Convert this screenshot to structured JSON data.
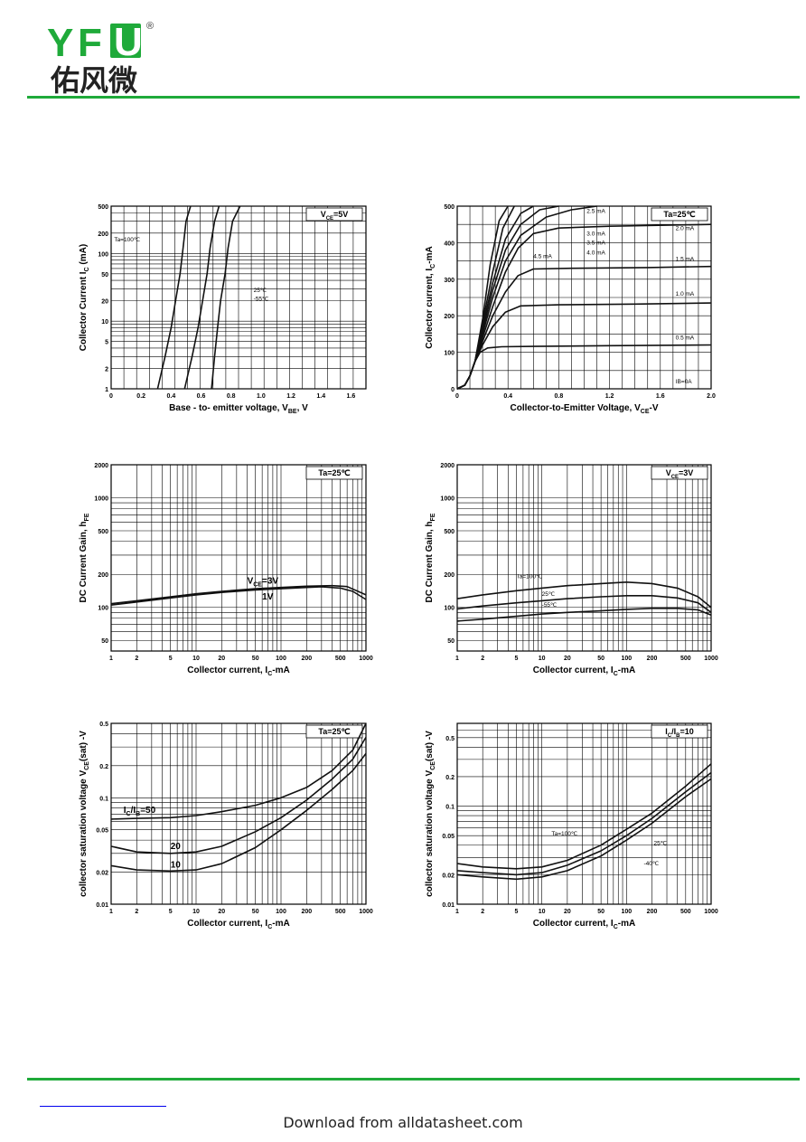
{
  "header": {
    "logo": {
      "letters": [
        "Y",
        "F",
        "U"
      ],
      "registered": "®",
      "cn": "佑风微",
      "brand_color": "#1faa3a"
    }
  },
  "footer": {
    "text": "Download from alldatasheet.com",
    "link_color": "#0000ee"
  },
  "chart_data": [
    {
      "type": "line",
      "yscale": "log",
      "xlabel": "Base - to- emitter voltage, Vₓₑ, V",
      "xlabel_main": "Base - to- emitter voltage, V",
      "xlabel_sub": "BE",
      "xlabel_tail": ", V",
      "ylabel_main": "Collector  Current  I",
      "ylabel_sub": "C",
      "ylabel_tail": " (mA)",
      "xlim": [
        0,
        1.7
      ],
      "ylim": [
        1,
        500
      ],
      "xticks": [
        "0",
        "0.2",
        "0.4",
        "0.6",
        "0.8",
        "1.0",
        "1.2",
        "1.4",
        "1.6"
      ],
      "xtick_vals": [
        0,
        0.2,
        0.4,
        0.6,
        0.8,
        1.0,
        1.2,
        1.4,
        1.6
      ],
      "yticks": [
        "1",
        "2",
        "5",
        "10",
        "20",
        "50",
        "100",
        "200",
        "500"
      ],
      "ytick_vals": [
        1,
        2,
        5,
        10,
        20,
        50,
        100,
        200,
        500
      ],
      "box_main": "V",
      "box_sub": "CE",
      "box_tail": "=5V",
      "annotations": [
        {
          "text": "Ta=100℃",
          "x": 0.02,
          "y": 150
        },
        {
          "text": "25℃",
          "x": 0.95,
          "y": 27
        },
        {
          "text": "-55℃",
          "x": 0.95,
          "y": 20
        }
      ],
      "series": [
        {
          "name": "Ta=100℃",
          "x": [
            0.31,
            0.36,
            0.4,
            0.43,
            0.46,
            0.48,
            0.5,
            0.53
          ],
          "y": [
            1,
            3,
            8,
            20,
            50,
            120,
            300,
            500
          ]
        },
        {
          "name": "25℃",
          "x": [
            0.49,
            0.54,
            0.58,
            0.61,
            0.64,
            0.66,
            0.69,
            0.72
          ],
          "y": [
            1,
            3,
            8,
            20,
            50,
            120,
            300,
            500
          ]
        },
        {
          "name": "-55℃",
          "x": [
            0.67,
            0.69,
            0.71,
            0.73,
            0.76,
            0.78,
            0.81,
            0.86
          ],
          "y": [
            1,
            3,
            8,
            20,
            50,
            120,
            300,
            500
          ]
        }
      ]
    },
    {
      "type": "line",
      "xlabel_main": "Collector-to-Emitter Voltage, V",
      "xlabel_sub": "CE",
      "xlabel_tail": "-V",
      "ylabel_main": "Collector current, I",
      "ylabel_sub": "C",
      "ylabel_tail": "-mA",
      "xlim": [
        0,
        2.0
      ],
      "ylim": [
        0,
        500
      ],
      "xticks": [
        "0",
        "0.4",
        "0.8",
        "1.2",
        "1.6",
        "2.0"
      ],
      "xtick_vals": [
        0,
        0.4,
        0.8,
        1.2,
        1.6,
        2.0
      ],
      "yticks": [
        "0",
        "100",
        "200",
        "300",
        "400",
        "500"
      ],
      "ytick_vals": [
        0,
        100,
        200,
        300,
        400,
        500
      ],
      "box_text": "Ta=25℃",
      "annotations": [
        {
          "text": "2.5 mA",
          "x": 1.02,
          "y": 482
        },
        {
          "text": "2.0 mA",
          "x": 1.72,
          "y": 435
        },
        {
          "text": "3.0 mA",
          "x": 1.02,
          "y": 420
        },
        {
          "text": "3.5 mA",
          "x": 1.02,
          "y": 395
        },
        {
          "text": "4.0 mA",
          "x": 1.02,
          "y": 368
        },
        {
          "text": "4.5 mA",
          "x": 0.6,
          "y": 358
        },
        {
          "text": "1.5 mA",
          "x": 1.72,
          "y": 350
        },
        {
          "text": "1.0 mA",
          "x": 1.72,
          "y": 255
        },
        {
          "text": "0.5 mA",
          "x": 1.72,
          "y": 135
        },
        {
          "text": "IB=0A",
          "x": 1.72,
          "y": 15
        }
      ],
      "series": [
        {
          "name": "0.5 mA",
          "x": [
            0,
            0.06,
            0.1,
            0.14,
            0.18,
            0.24,
            0.35,
            0.6,
            1.2,
            2.0
          ],
          "y": [
            0,
            10,
            35,
            75,
            100,
            112,
            115,
            116,
            118,
            120
          ]
        },
        {
          "name": "1.0 mA",
          "x": [
            0,
            0.06,
            0.1,
            0.14,
            0.2,
            0.28,
            0.38,
            0.5,
            0.8,
            1.4,
            2.0
          ],
          "y": [
            0,
            10,
            35,
            75,
            120,
            170,
            210,
            227,
            230,
            232,
            235
          ]
        },
        {
          "name": "1.5 mA",
          "x": [
            0,
            0.06,
            0.1,
            0.14,
            0.2,
            0.28,
            0.38,
            0.48,
            0.6,
            0.9,
            1.5,
            2.0
          ],
          "y": [
            0,
            10,
            35,
            75,
            130,
            200,
            265,
            310,
            328,
            330,
            332,
            335
          ]
        },
        {
          "name": "2.0 mA",
          "x": [
            0,
            0.06,
            0.1,
            0.14,
            0.2,
            0.28,
            0.38,
            0.48,
            0.6,
            0.8,
            1.2,
            2.0
          ],
          "y": [
            0,
            10,
            35,
            75,
            140,
            225,
            320,
            385,
            425,
            440,
            445,
            450
          ]
        },
        {
          "name": "2.5 mA",
          "x": [
            0,
            0.06,
            0.1,
            0.14,
            0.2,
            0.28,
            0.38,
            0.5,
            0.7,
            0.9,
            1.1
          ],
          "y": [
            0,
            10,
            35,
            75,
            150,
            250,
            350,
            420,
            470,
            490,
            500
          ]
        },
        {
          "name": "3.0 mA",
          "x": [
            0,
            0.06,
            0.1,
            0.14,
            0.2,
            0.28,
            0.38,
            0.5,
            0.65,
            0.8
          ],
          "y": [
            0,
            10,
            35,
            75,
            160,
            270,
            380,
            450,
            490,
            500
          ]
        },
        {
          "name": "3.5 mA",
          "x": [
            0,
            0.06,
            0.1,
            0.14,
            0.2,
            0.28,
            0.38,
            0.5,
            0.6
          ],
          "y": [
            0,
            10,
            35,
            75,
            170,
            290,
            410,
            480,
            500
          ]
        },
        {
          "name": "4.0 mA",
          "x": [
            0,
            0.06,
            0.1,
            0.14,
            0.2,
            0.28,
            0.36,
            0.45
          ],
          "y": [
            0,
            10,
            35,
            75,
            180,
            320,
            440,
            500
          ]
        },
        {
          "name": "4.5 mA",
          "x": [
            0,
            0.06,
            0.1,
            0.14,
            0.2,
            0.26,
            0.33,
            0.4
          ],
          "y": [
            0,
            10,
            35,
            75,
            190,
            340,
            460,
            500
          ]
        }
      ]
    },
    {
      "type": "line",
      "xscale": "log",
      "yscale": "log",
      "xlabel_main": "Collector current, I",
      "xlabel_sub": "C",
      "xlabel_tail": "-mA",
      "ylabel_main": "DC Current Gain, h",
      "ylabel_sub": "FE",
      "ylabel_tail": "",
      "xlim": [
        1,
        1000
      ],
      "ylim": [
        40,
        2000
      ],
      "xticks": [
        "1",
        "2",
        "5",
        "10",
        "20",
        "50",
        "100",
        "200",
        "500",
        "1000"
      ],
      "xtick_vals": [
        1,
        2,
        5,
        10,
        20,
        50,
        100,
        200,
        500,
        1000
      ],
      "yticks": [
        "50",
        "100",
        "200",
        "500",
        "1000",
        "2000"
      ],
      "ytick_vals": [
        50,
        100,
        200,
        500,
        1000,
        2000
      ],
      "box_text": "Ta=25℃",
      "annotations": [
        {
          "text_main": "V",
          "text_sub": "CE",
          "text_tail": "=3V",
          "x": 40,
          "y": 165
        },
        {
          "text_main": "1V",
          "text_sub": "",
          "text_tail": "",
          "x": 60,
          "y": 118
        }
      ],
      "series": [
        {
          "name": "Vₓₑ=3V",
          "x": [
            1,
            2,
            5,
            10,
            20,
            50,
            100,
            200,
            400,
            600,
            1000
          ],
          "y": [
            108,
            115,
            125,
            133,
            140,
            148,
            152,
            156,
            158,
            155,
            130
          ]
        },
        {
          "name": "1V",
          "x": [
            1,
            2,
            5,
            10,
            20,
            50,
            100,
            200,
            300,
            500,
            700,
            1000
          ],
          "y": [
            105,
            112,
            122,
            130,
            137,
            144,
            148,
            152,
            154,
            150,
            140,
            118
          ]
        }
      ]
    },
    {
      "type": "line",
      "xscale": "log",
      "yscale": "log",
      "xlabel_main": "Collector current, I",
      "xlabel_sub": "C",
      "xlabel_tail": "-mA",
      "ylabel_main": "DC Current Gain, h",
      "ylabel_sub": "FE",
      "ylabel_tail": "",
      "xlim": [
        1,
        1000
      ],
      "ylim": [
        40,
        2000
      ],
      "xticks": [
        "1",
        "2",
        "5",
        "10",
        "20",
        "50",
        "100",
        "200",
        "500",
        "1000"
      ],
      "xtick_vals": [
        1,
        2,
        5,
        10,
        20,
        50,
        100,
        200,
        500,
        1000
      ],
      "yticks": [
        "50",
        "100",
        "200",
        "500",
        "1000",
        "2000"
      ],
      "ytick_vals": [
        50,
        100,
        200,
        500,
        1000,
        2000
      ],
      "box_main": "V",
      "box_sub": "CE",
      "box_tail": "=3V",
      "annotations": [
        {
          "text": "Ta=100℃",
          "x": 5,
          "y": 185
        },
        {
          "text": "25℃",
          "x": 10,
          "y": 128
        },
        {
          "text": "-55℃",
          "x": 10,
          "y": 101
        }
      ],
      "series": [
        {
          "name": "Ta=100℃",
          "x": [
            1,
            2,
            5,
            10,
            20,
            50,
            100,
            200,
            400,
            700,
            1000
          ],
          "y": [
            120,
            130,
            142,
            150,
            158,
            165,
            170,
            165,
            150,
            125,
            100
          ]
        },
        {
          "name": "25℃",
          "x": [
            1,
            2,
            5,
            10,
            20,
            50,
            100,
            200,
            400,
            700,
            1000
          ],
          "y": [
            97,
            103,
            110,
            115,
            120,
            125,
            128,
            128,
            122,
            110,
            90
          ]
        },
        {
          "name": "-55℃",
          "x": [
            1,
            2,
            5,
            10,
            20,
            50,
            100,
            200,
            400,
            700,
            1000
          ],
          "y": [
            75,
            78,
            83,
            87,
            90,
            93,
            96,
            98,
            98,
            95,
            85
          ]
        }
      ]
    },
    {
      "type": "line",
      "xscale": "log",
      "yscale": "log",
      "xlabel_main": "Collector current, I",
      "xlabel_sub": "C",
      "xlabel_tail": "-mA",
      "ylabel_main": "collector saturation voltage V",
      "ylabel_sub": "CE",
      "ylabel_tail": "(sat) -V",
      "xlim": [
        1,
        1000
      ],
      "ylim": [
        0.01,
        0.5
      ],
      "xticks": [
        "1",
        "2",
        "5",
        "10",
        "20",
        "50",
        "100",
        "200",
        "500",
        "1000"
      ],
      "xtick_vals": [
        1,
        2,
        5,
        10,
        20,
        50,
        100,
        200,
        500,
        1000
      ],
      "yticks": [
        "0.01",
        "0.02",
        "0.05",
        "0.1",
        "0.2",
        "0.5"
      ],
      "ytick_vals": [
        0.01,
        0.02,
        0.05,
        0.1,
        0.2,
        0.5
      ],
      "box_text": "Ta=25℃",
      "annotations": [
        {
          "text_main": "I",
          "text_sub": "C",
          "text_tail": "/I",
          "text_sub2": "B",
          "text_tail2": "=50",
          "x": 1.4,
          "y": 0.072
        },
        {
          "text_main": "20",
          "x": 5,
          "y": 0.033
        },
        {
          "text_main": "10",
          "x": 5,
          "y": 0.022
        }
      ],
      "series": [
        {
          "name": "50",
          "x": [
            1,
            2,
            5,
            10,
            20,
            50,
            100,
            200,
            400,
            700,
            1000
          ],
          "y": [
            0.063,
            0.064,
            0.065,
            0.068,
            0.074,
            0.085,
            0.1,
            0.125,
            0.18,
            0.28,
            0.5
          ]
        },
        {
          "name": "20",
          "x": [
            1,
            2,
            5,
            10,
            20,
            50,
            100,
            200,
            400,
            700,
            1000
          ],
          "y": [
            0.035,
            0.031,
            0.03,
            0.031,
            0.035,
            0.048,
            0.065,
            0.095,
            0.15,
            0.23,
            0.37
          ]
        },
        {
          "name": "10",
          "x": [
            1,
            2,
            5,
            10,
            20,
            50,
            100,
            200,
            400,
            700,
            1000
          ],
          "y": [
            0.023,
            0.021,
            0.0205,
            0.021,
            0.024,
            0.034,
            0.05,
            0.076,
            0.12,
            0.18,
            0.26
          ]
        }
      ]
    },
    {
      "type": "line",
      "xscale": "log",
      "yscale": "log",
      "xlabel_main": "Collector current, I",
      "xlabel_sub": "C",
      "xlabel_tail": "-mA",
      "ylabel_main": "collector saturation voltage V",
      "ylabel_sub": "CE",
      "ylabel_tail": "(sat) -V",
      "xlim": [
        1,
        1000
      ],
      "ylim": [
        0.01,
        0.7
      ],
      "xticks": [
        "1",
        "2",
        "5",
        "10",
        "20",
        "50",
        "100",
        "200",
        "500",
        "1000"
      ],
      "xtick_vals": [
        1,
        2,
        5,
        10,
        20,
        50,
        100,
        200,
        500,
        1000
      ],
      "yticks": [
        "0.01",
        "0.02",
        "0.05",
        "0.1",
        "0.2",
        "0.5"
      ],
      "ytick_vals": [
        0.01,
        0.02,
        0.05,
        0.1,
        0.2,
        0.5
      ],
      "box_main": "I",
      "box_sub": "C",
      "box_tail": "/I",
      "box_sub2": "B",
      "box_tail2": "=10",
      "annotations": [
        {
          "text": "Ta=100℃",
          "x": 13,
          "y": 0.05
        },
        {
          "text": "25℃",
          "x": 210,
          "y": 0.04
        },
        {
          "text": "-40℃",
          "x": 160,
          "y": 0.025
        }
      ],
      "series": [
        {
          "name": "Ta=100℃",
          "x": [
            1,
            2,
            5,
            10,
            20,
            50,
            100,
            200,
            500,
            1000
          ],
          "y": [
            0.026,
            0.024,
            0.023,
            0.024,
            0.028,
            0.04,
            0.058,
            0.085,
            0.16,
            0.27
          ]
        },
        {
          "name": "25℃",
          "x": [
            1,
            2,
            5,
            10,
            20,
            50,
            100,
            200,
            500,
            1000
          ],
          "y": [
            0.022,
            0.021,
            0.02,
            0.021,
            0.025,
            0.035,
            0.05,
            0.075,
            0.14,
            0.22
          ]
        },
        {
          "name": "-40℃",
          "x": [
            1,
            2,
            5,
            10,
            20,
            50,
            100,
            200,
            500,
            1000
          ],
          "y": [
            0.02,
            0.019,
            0.018,
            0.019,
            0.022,
            0.031,
            0.045,
            0.067,
            0.125,
            0.19
          ]
        }
      ]
    }
  ]
}
